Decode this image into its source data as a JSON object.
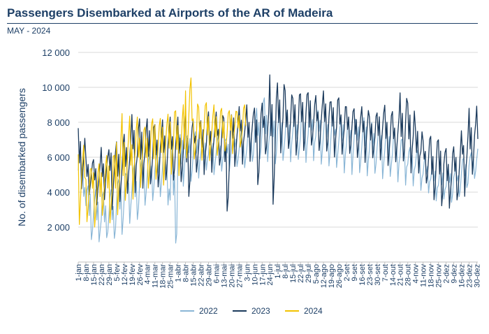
{
  "header": {
    "title": "Passengers Disembarked at Airports of the AR of Madeira",
    "subtitle": "MAY - 2024"
  },
  "chart_data": {
    "type": "line",
    "title": "Passengers Disembarked at Airports of the AR of Madeira",
    "subtitle": "MAY - 2024",
    "xlabel": "",
    "ylabel": "No. of disembarked passengers",
    "ylim": [
      0,
      12000
    ],
    "yticks": [
      "2 000",
      "4 000",
      "6 000",
      "8 000",
      "10 000",
      "12 000"
    ],
    "ytick_values": [
      2000,
      4000,
      6000,
      8000,
      10000,
      12000
    ],
    "grid": true,
    "legend_position": "bottom",
    "x_tick_labels": [
      "1-jan",
      "8-jan",
      "15-jan",
      "22-jan",
      "29-jan",
      "5-fev",
      "12-fev",
      "19-fev",
      "26-fev",
      "4-mar",
      "11-mar",
      "18-mar",
      "25-mar",
      "1-abr",
      "8-abr",
      "15-abr",
      "22-abr",
      "29-abr",
      "6-mai",
      "13-mai",
      "20-mai",
      "27-mai",
      "3-jun",
      "10-jun",
      "17-jun",
      "24-jun",
      "1-jul",
      "8-jul",
      "15-jul",
      "22-jul",
      "29-jul",
      "5-ago",
      "12-ago",
      "19-ago",
      "26-ago",
      "2-set",
      "9-set",
      "16-set",
      "23-set",
      "30-set",
      "7-out",
      "14-out",
      "21-out",
      "28-out",
      "4-nov",
      "11-nov",
      "18-nov",
      "25-nov",
      "2-dez",
      "9-dez",
      "16-dez",
      "23-dez",
      "30-dez"
    ],
    "weekly_series": [
      {
        "name": "2022",
        "color": "#8ab6d6",
        "weekly_low": [
          3600,
          1000,
          1000,
          1000,
          900,
          1500,
          2200,
          2300,
          3200,
          3500,
          3300,
          3200,
          200,
          4200,
          4600,
          4800,
          5000,
          5000,
          5200,
          5200,
          5300,
          5400,
          5500,
          5500,
          5400,
          5500,
          5500,
          5600,
          5700,
          5700,
          5700,
          5600,
          5500,
          5300,
          5100,
          5000,
          5000,
          4900,
          4800,
          4700,
          4600,
          4500,
          4400,
          4300,
          4100,
          3800,
          3500,
          3300,
          3200,
          3600,
          4100,
          4700,
          5000
        ],
        "weekly_high": [
          6600,
          4600,
          4200,
          4000,
          4200,
          5000,
          5300,
          5600,
          5900,
          6200,
          6600,
          6800,
          6900,
          7500,
          7600,
          7500,
          7400,
          7400,
          7300,
          7300,
          7500,
          7500,
          7600,
          8800,
          9400,
          8700,
          8600,
          8700,
          8800,
          8800,
          8900,
          8900,
          8800,
          8700,
          8500,
          8400,
          8400,
          8300,
          8000,
          8000,
          7800,
          7600,
          7200,
          6800,
          6500,
          6200,
          5800,
          5600,
          5500,
          5600,
          6000,
          6400,
          6600
        ]
      },
      {
        "name": "2023",
        "color": "#1b3a5c",
        "weekly_low": [
          3700,
          3800,
          3000,
          3500,
          3000,
          3200,
          3600,
          3800,
          4200,
          4100,
          4300,
          4400,
          4500,
          4600,
          3300,
          4700,
          4900,
          5100,
          5200,
          2200,
          5400,
          5600,
          5700,
          3900,
          5800,
          2300,
          6000,
          6100,
          6100,
          6200,
          6200,
          6200,
          6100,
          6000,
          6000,
          5900,
          5800,
          5700,
          5600,
          5500,
          5400,
          5300,
          5200,
          5100,
          4800,
          4200,
          3500,
          3200,
          3000,
          3200,
          3600,
          4800,
          5400
        ],
        "weekly_high": [
          7700,
          6000,
          6200,
          6600,
          6900,
          7200,
          7800,
          8500,
          8200,
          8200,
          8200,
          8200,
          8300,
          8300,
          8700,
          8500,
          8500,
          8600,
          8700,
          8900,
          8800,
          8900,
          9000,
          9200,
          9400,
          11500,
          10500,
          10000,
          9800,
          9900,
          9900,
          9800,
          9800,
          9600,
          9400,
          9200,
          9000,
          8900,
          8700,
          8900,
          9000,
          8900,
          10000,
          9100,
          8100,
          7400,
          7200,
          7000,
          6500,
          6600,
          8000,
          8800,
          9000
        ]
      },
      {
        "name": "2024",
        "color": "#f2c200",
        "weekly_low": [
          2000,
          2200,
          2000,
          2500,
          2200,
          2200,
          3300,
          3600,
          3900,
          4200,
          4500,
          4400,
          4600,
          4500,
          5200,
          5400,
          5600,
          5800,
          5900,
          6000,
          6200,
          6300
        ],
        "weekly_high": [
          7000,
          5700,
          5800,
          6100,
          6300,
          8500,
          8400,
          8300,
          8000,
          8200,
          8600,
          8800,
          8900,
          9200,
          10800,
          9300,
          9200,
          9000,
          8800,
          8800,
          8900,
          9000
        ]
      }
    ]
  }
}
